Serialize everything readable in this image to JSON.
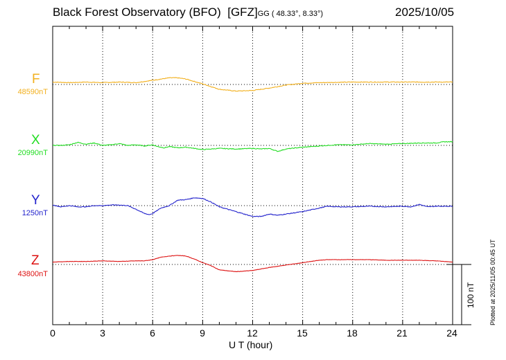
{
  "header": {
    "observatory": "Black Forest Observatory (BFO)",
    "institute": "[GFZ]",
    "coords": "GG ( 48.33°,   8.33°)",
    "date": "2025/10/05"
  },
  "footer": {
    "plotted": "Plotted at 2025/11/05 00:45 UT",
    "scale": "100 nT"
  },
  "chart_data": {
    "type": "line",
    "title": "Black Forest Observatory (BFO) [GFZ]",
    "xlabel": "U T (hour)",
    "ylabel": "",
    "xlim": [
      0,
      24
    ],
    "xticks": [
      "0",
      "3",
      "6",
      "9",
      "12",
      "15",
      "18",
      "21",
      "24"
    ],
    "grid": true,
    "scale_bar_nT": 100,
    "series": [
      {
        "name": "F",
        "baseline_label": "48590nT",
        "baseline_nT": 48590,
        "color": "#f2b01e",
        "x": [
          0,
          1,
          2,
          3,
          4,
          5,
          5.5,
          6,
          6.5,
          7,
          7.5,
          8,
          9,
          10,
          11,
          12,
          13,
          14,
          15,
          16,
          18,
          20,
          22,
          23,
          24
        ],
        "values": [
          48594,
          48593,
          48594,
          48593,
          48594,
          48593,
          48595,
          48597,
          48599,
          48601,
          48601,
          48599,
          48591,
          48582,
          48579,
          48580,
          48584,
          48589,
          48592,
          48593,
          48594,
          48594,
          48594,
          48594,
          48594
        ]
      },
      {
        "name": "X",
        "baseline_label": "20990nT",
        "baseline_nT": 20990,
        "color": "#22dd22",
        "x": [
          0,
          0.5,
          1,
          1.5,
          2,
          2.5,
          3,
          3.5,
          4,
          4.5,
          5,
          5.5,
          6,
          6.3,
          6.7,
          7,
          7.5,
          8,
          9,
          10,
          11,
          12,
          12.5,
          13,
          13.5,
          14,
          15,
          16,
          17,
          18,
          19,
          20,
          21,
          22,
          23,
          23.5,
          24
        ],
        "values": [
          20990,
          20990,
          20991,
          20995,
          20992,
          20994,
          20990,
          20991,
          20993,
          20990,
          20991,
          20989,
          20991,
          20988,
          20986,
          20988,
          20986,
          20987,
          20983,
          20985,
          20984,
          20985,
          20984,
          20985,
          20980,
          20984,
          20987,
          20989,
          20991,
          20991,
          20993,
          20992,
          20993,
          20994,
          20994,
          20996,
          20996
        ]
      },
      {
        "name": "Y",
        "baseline_label": "1250nT",
        "baseline_nT": 1250,
        "color": "#2222cc",
        "x": [
          0,
          0.5,
          1,
          1.5,
          2,
          2.5,
          3,
          3.5,
          4,
          4.5,
          5,
          5.5,
          5.8,
          6,
          6.5,
          7,
          7.5,
          8,
          8.5,
          9,
          9.5,
          10,
          10.5,
          11,
          11.5,
          12,
          12.5,
          13,
          13.5,
          14,
          15,
          16,
          16.5,
          17,
          18,
          19,
          20,
          21,
          21.5,
          22,
          22.5,
          23,
          24
        ],
        "values": [
          1251,
          1248,
          1250,
          1248,
          1248,
          1250,
          1250,
          1251,
          1251,
          1250,
          1244,
          1237,
          1235,
          1237,
          1246,
          1250,
          1259,
          1260,
          1263,
          1262,
          1256,
          1248,
          1244,
          1240,
          1236,
          1232,
          1232,
          1236,
          1234,
          1236,
          1240,
          1246,
          1249,
          1248,
          1248,
          1249,
          1248,
          1249,
          1248,
          1252,
          1248,
          1249,
          1249
        ]
      },
      {
        "name": "Z",
        "baseline_label": "43800nT",
        "baseline_nT": 43800,
        "color": "#dd1111",
        "x": [
          0,
          1,
          2,
          3,
          4,
          5,
          5.5,
          6,
          6.5,
          7,
          7.5,
          8,
          8.5,
          9,
          9.5,
          10,
          11,
          12,
          13,
          14,
          15,
          16,
          16.5,
          17,
          18,
          19,
          20,
          21,
          22,
          23,
          24
        ],
        "values": [
          43804,
          43805,
          43805,
          43806,
          43805,
          43806,
          43806,
          43808,
          43812,
          43814,
          43815,
          43814,
          43809,
          43803,
          43798,
          43791,
          43788,
          43790,
          43795,
          43799,
          43803,
          43807,
          43808,
          43808,
          43808,
          43808,
          43807,
          43807,
          43807,
          43806,
          43804
        ]
      }
    ]
  }
}
